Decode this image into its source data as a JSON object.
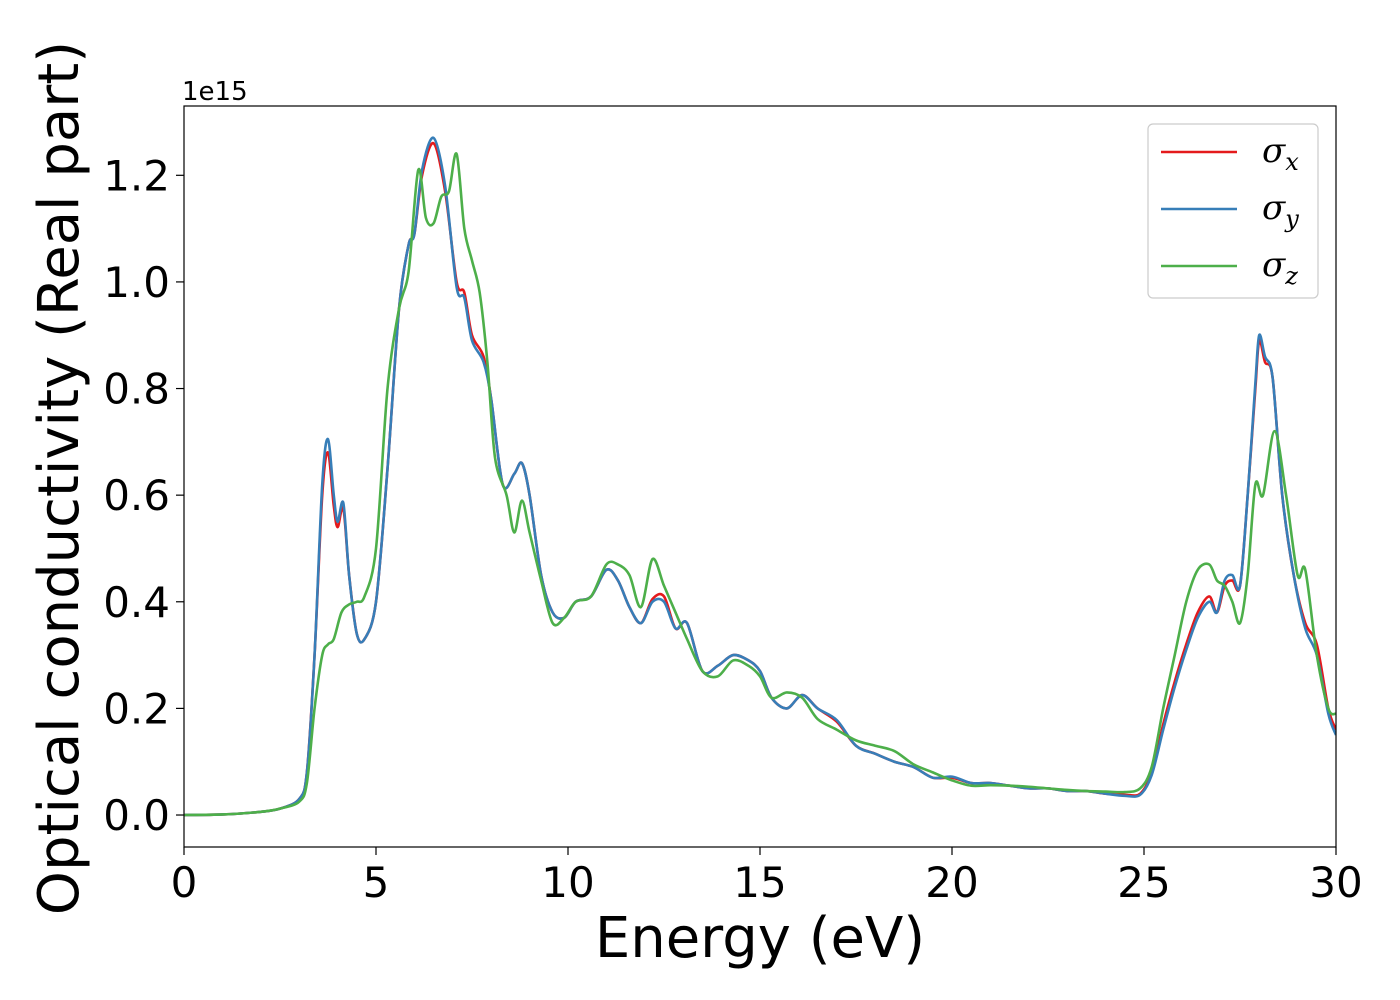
{
  "chart_data": {
    "type": "line",
    "title": "",
    "xlabel": "Energy (eV)",
    "ylabel": "Optical conductivity (Real part)",
    "y_offset_label": "1e15",
    "xlim": [
      0,
      30
    ],
    "ylim": [
      -0.06,
      1.33
    ],
    "xticks": [
      0,
      5,
      10,
      15,
      20,
      25,
      30
    ],
    "xtick_labels": [
      "0",
      "5",
      "10",
      "15",
      "20",
      "25",
      "30"
    ],
    "yticks": [
      0.0,
      0.2,
      0.4,
      0.6,
      0.8,
      1.0,
      1.2
    ],
    "ytick_labels": [
      "0.0",
      "0.2",
      "0.4",
      "0.6",
      "0.8",
      "1.0",
      "1.2"
    ],
    "grid": false,
    "legend_position": "top-right",
    "series": [
      {
        "name": "σx",
        "symbol": "σ",
        "subscript": "x",
        "color": "#e41a1c",
        "x": [
          0,
          1,
          2,
          2.5,
          3.0,
          3.2,
          3.4,
          3.6,
          3.75,
          3.9,
          4.0,
          4.15,
          4.3,
          4.5,
          4.7,
          5.0,
          5.3,
          5.6,
          5.85,
          6.0,
          6.2,
          6.5,
          6.8,
          7.1,
          7.3,
          7.5,
          7.8,
          8.0,
          8.3,
          8.6,
          8.8,
          9.0,
          9.3,
          9.6,
          9.9,
          10.2,
          10.6,
          11.0,
          11.3,
          11.6,
          11.9,
          12.2,
          12.5,
          12.8,
          13.1,
          13.5,
          13.9,
          14.3,
          14.7,
          15.0,
          15.3,
          15.7,
          16.1,
          16.5,
          17.0,
          17.5,
          18.0,
          18.5,
          19.0,
          19.5,
          20.0,
          20.5,
          21.0,
          21.5,
          22.0,
          22.5,
          23.0,
          23.5,
          24.0,
          24.5,
          24.9,
          25.2,
          25.5,
          25.8,
          26.1,
          26.4,
          26.7,
          26.9,
          27.1,
          27.3,
          27.5,
          27.7,
          27.9,
          28.0,
          28.15,
          28.35,
          28.6,
          28.9,
          29.2,
          29.5,
          29.8,
          30.0
        ],
        "values": [
          0.0,
          0.001,
          0.006,
          0.012,
          0.03,
          0.08,
          0.3,
          0.6,
          0.68,
          0.58,
          0.54,
          0.575,
          0.45,
          0.34,
          0.33,
          0.4,
          0.65,
          0.95,
          1.07,
          1.09,
          1.2,
          1.26,
          1.17,
          1.0,
          0.98,
          0.9,
          0.86,
          0.78,
          0.62,
          0.64,
          0.66,
          0.6,
          0.45,
          0.38,
          0.37,
          0.4,
          0.41,
          0.46,
          0.44,
          0.39,
          0.36,
          0.405,
          0.41,
          0.35,
          0.36,
          0.27,
          0.28,
          0.3,
          0.29,
          0.27,
          0.22,
          0.2,
          0.225,
          0.2,
          0.175,
          0.13,
          0.115,
          0.1,
          0.09,
          0.07,
          0.07,
          0.06,
          0.06,
          0.055,
          0.05,
          0.05,
          0.045,
          0.045,
          0.04,
          0.038,
          0.04,
          0.08,
          0.17,
          0.25,
          0.32,
          0.38,
          0.41,
          0.38,
          0.43,
          0.44,
          0.43,
          0.6,
          0.8,
          0.89,
          0.85,
          0.82,
          0.6,
          0.45,
          0.36,
          0.32,
          0.2,
          0.16
        ]
      },
      {
        "name": "σy",
        "symbol": "σ",
        "subscript": "y",
        "color": "#377eb8",
        "x": [
          0,
          1,
          2,
          2.5,
          3.0,
          3.2,
          3.4,
          3.6,
          3.75,
          3.9,
          4.0,
          4.15,
          4.3,
          4.5,
          4.7,
          5.0,
          5.3,
          5.6,
          5.85,
          6.0,
          6.2,
          6.5,
          6.8,
          7.1,
          7.3,
          7.5,
          7.8,
          8.0,
          8.3,
          8.6,
          8.8,
          9.0,
          9.3,
          9.6,
          9.9,
          10.2,
          10.6,
          11.0,
          11.3,
          11.6,
          11.9,
          12.2,
          12.5,
          12.8,
          13.1,
          13.5,
          13.9,
          14.3,
          14.7,
          15.0,
          15.3,
          15.7,
          16.1,
          16.5,
          17.0,
          17.5,
          18.0,
          18.5,
          19.0,
          19.5,
          20.0,
          20.5,
          21.0,
          21.5,
          22.0,
          22.5,
          23.0,
          23.5,
          24.0,
          24.5,
          24.9,
          25.2,
          25.5,
          25.8,
          26.1,
          26.4,
          26.7,
          26.9,
          27.1,
          27.3,
          27.5,
          27.7,
          27.9,
          28.0,
          28.15,
          28.35,
          28.6,
          28.9,
          29.2,
          29.5,
          29.8,
          30.0
        ],
        "values": [
          0.0,
          0.001,
          0.006,
          0.012,
          0.03,
          0.08,
          0.3,
          0.62,
          0.705,
          0.6,
          0.55,
          0.585,
          0.45,
          0.34,
          0.33,
          0.4,
          0.65,
          0.95,
          1.07,
          1.09,
          1.21,
          1.27,
          1.18,
          0.99,
          0.97,
          0.89,
          0.85,
          0.78,
          0.62,
          0.64,
          0.66,
          0.6,
          0.45,
          0.38,
          0.37,
          0.4,
          0.41,
          0.46,
          0.44,
          0.39,
          0.36,
          0.4,
          0.4,
          0.35,
          0.36,
          0.27,
          0.28,
          0.3,
          0.29,
          0.27,
          0.22,
          0.2,
          0.225,
          0.2,
          0.178,
          0.13,
          0.115,
          0.1,
          0.09,
          0.07,
          0.072,
          0.06,
          0.06,
          0.055,
          0.05,
          0.05,
          0.045,
          0.045,
          0.04,
          0.036,
          0.038,
          0.075,
          0.16,
          0.24,
          0.31,
          0.37,
          0.4,
          0.38,
          0.44,
          0.45,
          0.43,
          0.6,
          0.81,
          0.9,
          0.86,
          0.82,
          0.6,
          0.45,
          0.35,
          0.3,
          0.19,
          0.15
        ]
      },
      {
        "name": "σz",
        "symbol": "σ",
        "subscript": "z",
        "color": "#4daf4a",
        "x": [
          0,
          1,
          2,
          2.5,
          3.0,
          3.2,
          3.4,
          3.6,
          3.75,
          3.9,
          4.1,
          4.3,
          4.5,
          4.7,
          5.0,
          5.3,
          5.6,
          5.85,
          6.1,
          6.3,
          6.5,
          6.7,
          6.9,
          7.1,
          7.3,
          7.5,
          7.7,
          7.9,
          8.1,
          8.4,
          8.6,
          8.8,
          9.0,
          9.3,
          9.6,
          9.9,
          10.2,
          10.6,
          11.0,
          11.3,
          11.6,
          11.9,
          12.2,
          12.5,
          12.8,
          13.1,
          13.5,
          13.9,
          14.3,
          14.7,
          15.0,
          15.3,
          15.7,
          16.1,
          16.5,
          17.0,
          17.5,
          18.0,
          18.5,
          19.0,
          19.5,
          20.0,
          20.5,
          21.0,
          21.5,
          22.0,
          22.5,
          23.0,
          23.5,
          24.0,
          24.5,
          24.9,
          25.2,
          25.5,
          25.8,
          26.1,
          26.4,
          26.7,
          26.9,
          27.1,
          27.3,
          27.5,
          27.7,
          27.9,
          28.1,
          28.4,
          28.7,
          29.0,
          29.2,
          29.5,
          29.8,
          30.0
        ],
        "values": [
          0.0,
          0.001,
          0.006,
          0.012,
          0.025,
          0.06,
          0.2,
          0.3,
          0.32,
          0.33,
          0.38,
          0.395,
          0.4,
          0.41,
          0.5,
          0.8,
          0.95,
          1.02,
          1.21,
          1.12,
          1.11,
          1.16,
          1.17,
          1.24,
          1.1,
          1.04,
          0.98,
          0.85,
          0.67,
          0.6,
          0.53,
          0.59,
          0.53,
          0.44,
          0.36,
          0.37,
          0.4,
          0.41,
          0.47,
          0.47,
          0.45,
          0.39,
          0.48,
          0.43,
          0.38,
          0.33,
          0.27,
          0.26,
          0.29,
          0.28,
          0.26,
          0.22,
          0.23,
          0.22,
          0.18,
          0.16,
          0.14,
          0.13,
          0.12,
          0.095,
          0.08,
          0.065,
          0.055,
          0.056,
          0.055,
          0.053,
          0.05,
          0.047,
          0.045,
          0.044,
          0.043,
          0.05,
          0.09,
          0.2,
          0.3,
          0.4,
          0.46,
          0.47,
          0.44,
          0.43,
          0.4,
          0.36,
          0.45,
          0.62,
          0.6,
          0.72,
          0.6,
          0.45,
          0.46,
          0.3,
          0.2,
          0.19
        ]
      }
    ]
  }
}
